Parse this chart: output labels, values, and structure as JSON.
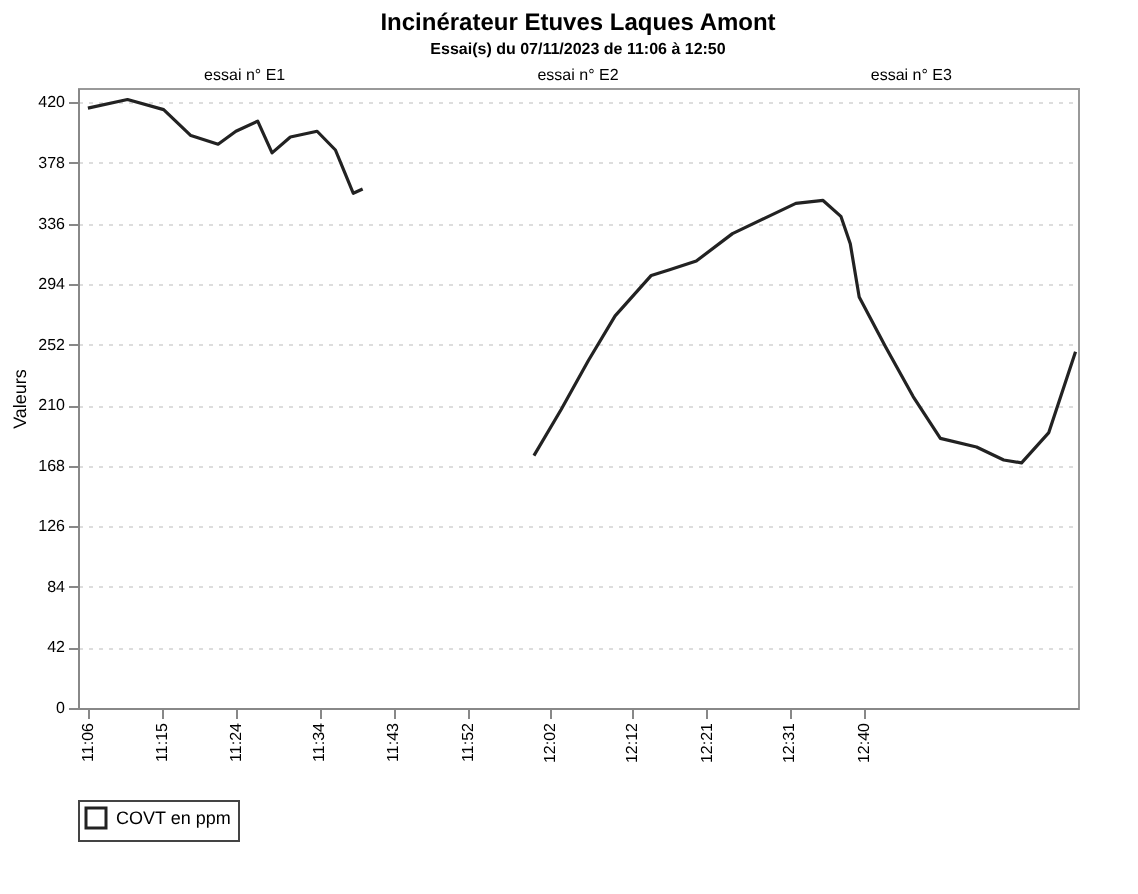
{
  "chart_data": {
    "type": "line",
    "title": "Incinérateur Etuves Laques Amont",
    "subtitle": "Essai(s) du 07/11/2023 de 11:06 à 12:50",
    "ylabel": "Valeurs",
    "annotations": [
      "essai n° E1",
      "essai n° E2",
      "essai n° E3"
    ],
    "x": [
      11.1,
      11.18,
      11.253,
      11.308,
      11.363,
      11.399,
      11.443,
      11.472,
      11.509,
      11.563,
      11.6,
      11.618,
      11.636,
      11.655,
      11.8,
      12.001,
      12.056,
      12.111,
      12.165,
      12.238,
      12.275,
      12.329,
      12.402,
      12.475,
      12.53,
      12.585,
      12.621,
      12.64,
      12.658,
      12.712,
      12.767,
      12.822,
      12.895,
      12.95,
      12.986,
      13.041,
      13.095
    ],
    "series": [
      {
        "name": "COVT en ppm",
        "color": "#222222",
        "values": [
          416,
          422,
          415,
          397,
          391,
          400,
          407,
          385,
          396,
          400,
          387,
          372,
          357,
          360,
          null,
          175,
          207,
          241,
          272,
          300,
          304,
          310,
          329,
          341,
          350,
          352,
          341,
          322,
          285,
          250,
          216,
          187,
          181,
          172,
          170,
          191,
          247
        ]
      }
    ],
    "xlim": [
      11.08,
      13.1
    ],
    "xticks": [
      {
        "value": 11.1,
        "label": "11:06"
      },
      {
        "value": 11.25,
        "label": "11:15"
      },
      {
        "value": 11.4,
        "label": "11:24"
      },
      {
        "value": 11.567,
        "label": "11:34"
      },
      {
        "value": 11.717,
        "label": "11:43"
      },
      {
        "value": 11.867,
        "label": "11:52"
      },
      {
        "value": 12.033,
        "label": "12:02"
      },
      {
        "value": 12.2,
        "label": "12:12"
      },
      {
        "value": 12.35,
        "label": "12:21"
      },
      {
        "value": 12.517,
        "label": "12:31"
      },
      {
        "value": 12.667,
        "label": "12:40"
      }
    ],
    "ylim": [
      0,
      430
    ],
    "yticks": [
      0,
      42,
      84,
      126,
      168,
      210,
      252,
      294,
      336,
      378,
      420
    ],
    "grid": "y",
    "legend": "bottom",
    "marker": "none",
    "line_style": "solid"
  }
}
